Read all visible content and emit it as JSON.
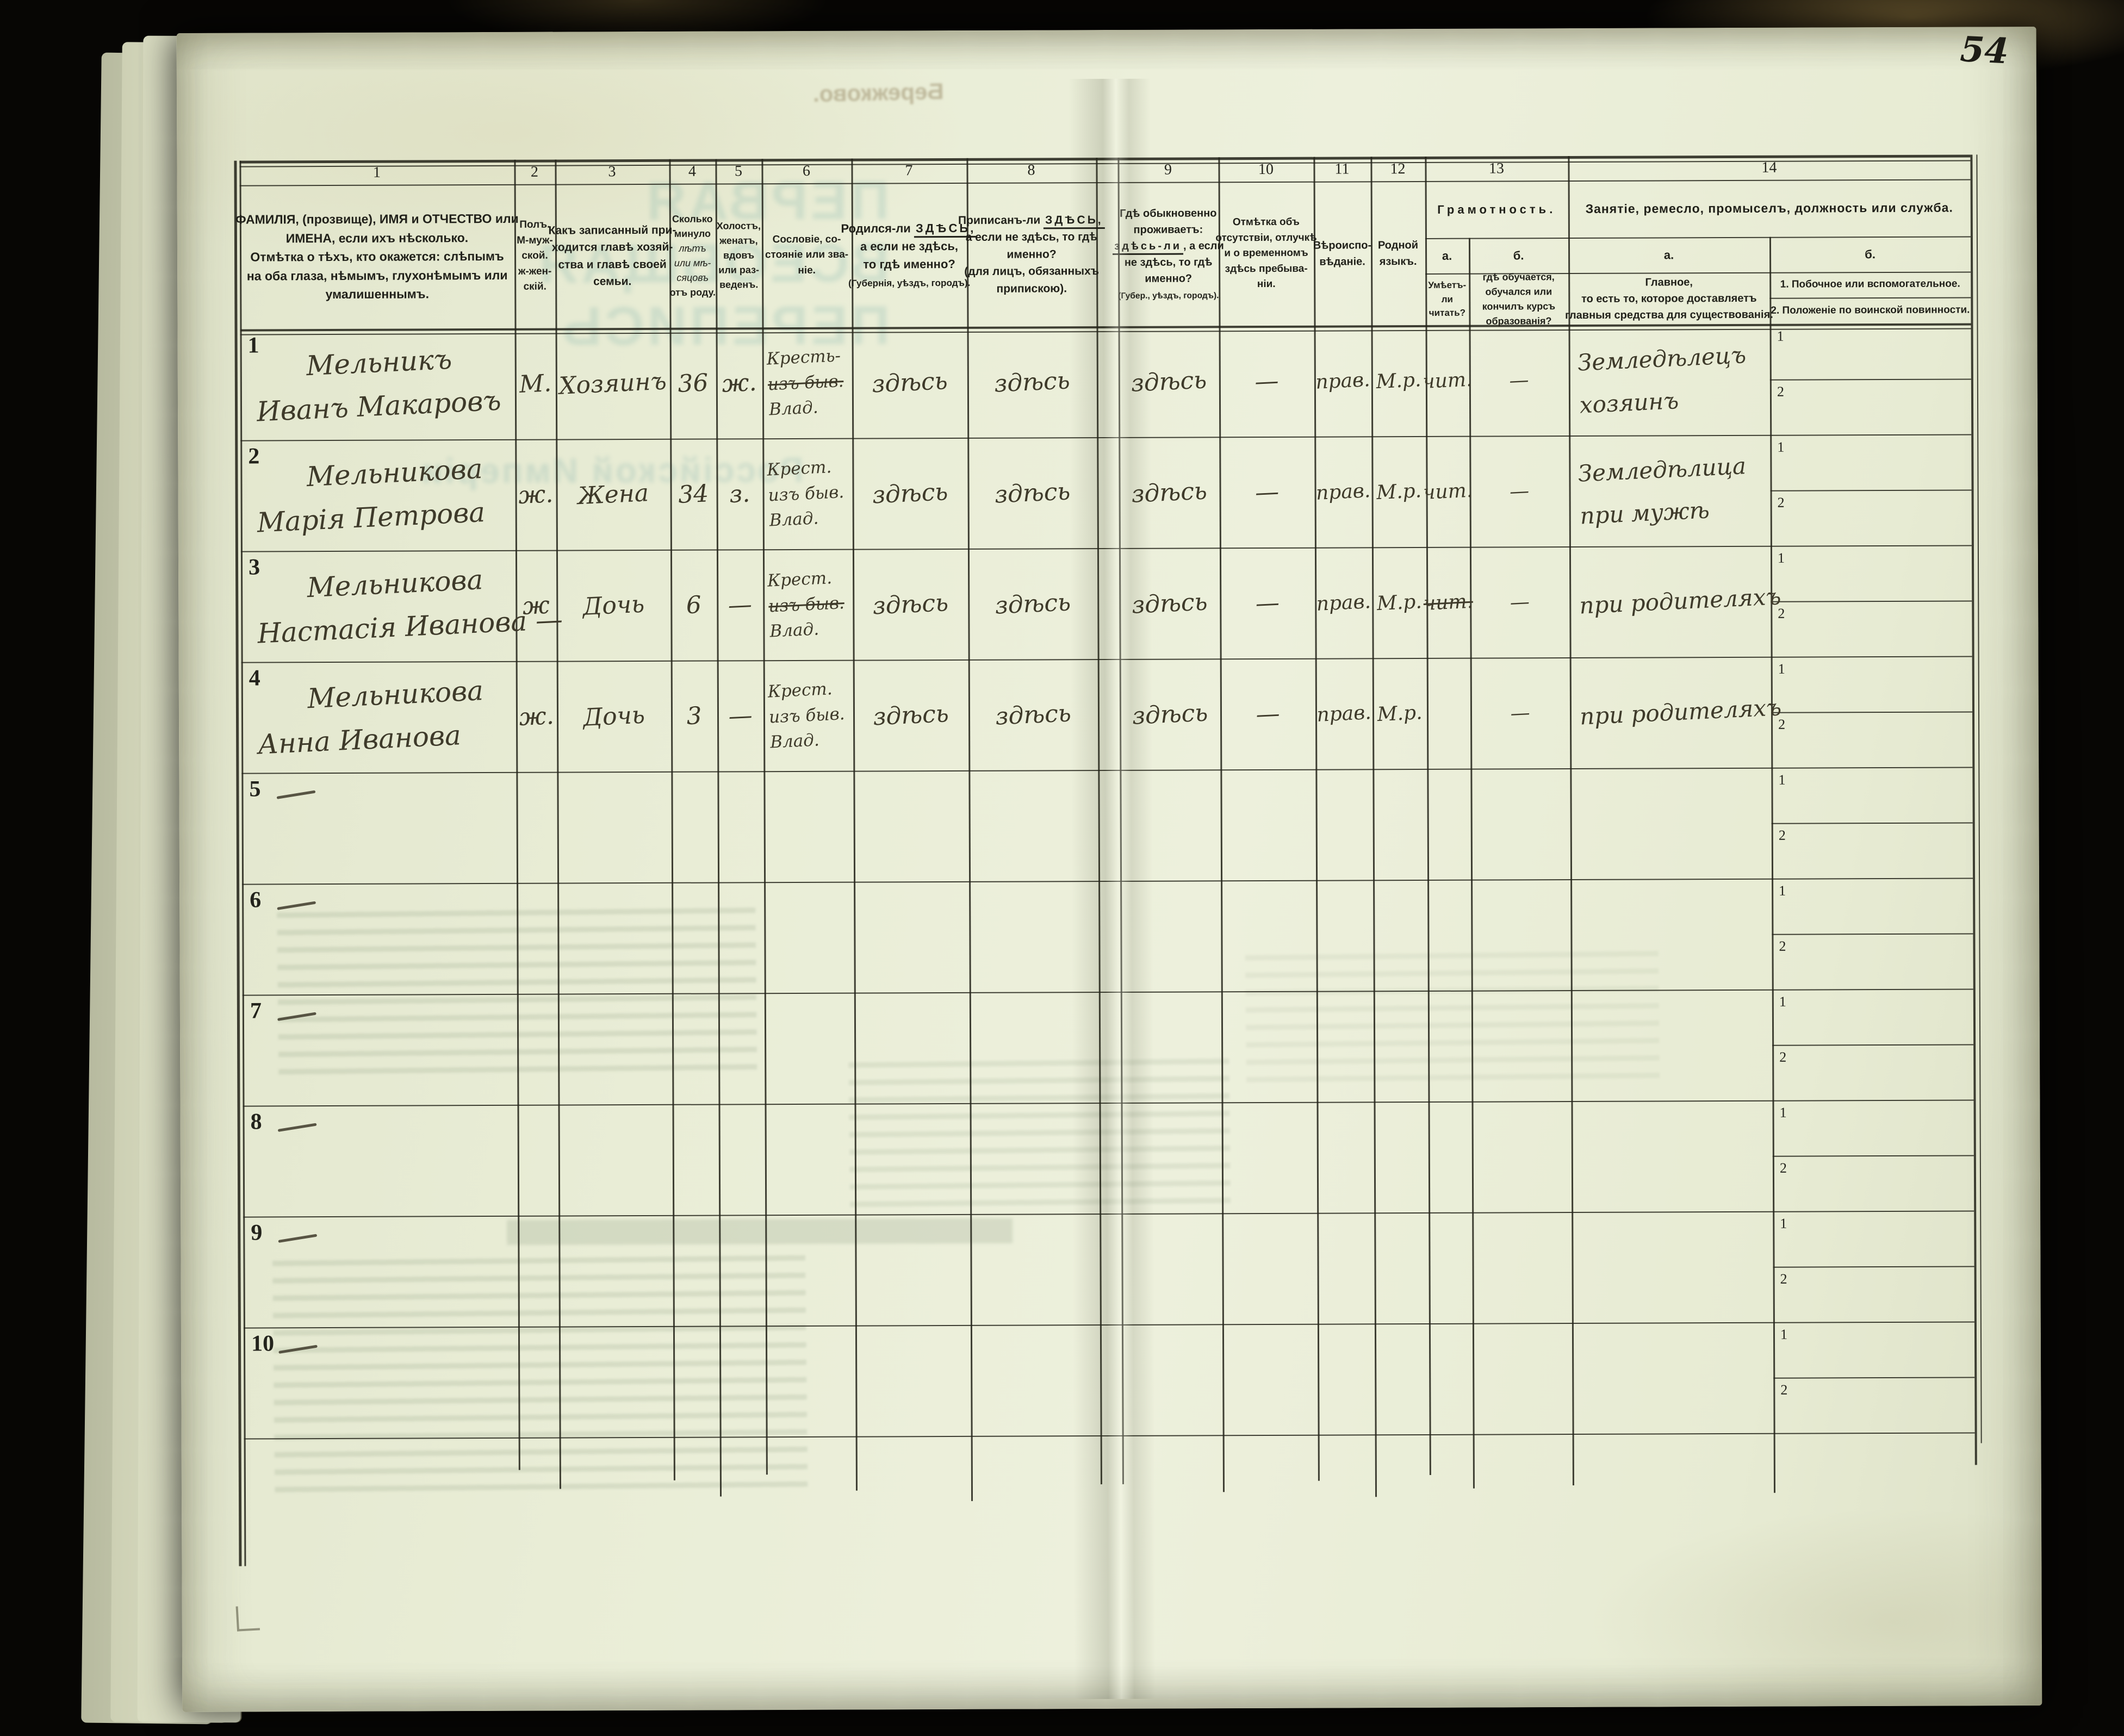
{
  "page": {
    "number": "54"
  },
  "bleedthrough": {
    "top_note": "Бережково.",
    "big_title_line1": "ПЕРВАЯ ВСЕОБЩАЯ ПЕРЕПИСЬ",
    "big_title_line2": "Россійской Имперіи"
  },
  "table": {
    "column_numbers": [
      "1",
      "2",
      "3",
      "4",
      "5",
      "6",
      "7",
      "8",
      "9",
      "10",
      "11",
      "12",
      "13",
      "14"
    ],
    "columns": {
      "c1": {
        "lines": [
          "ФАМИЛІЯ, (прозвище), ИМЯ и ОТЧЕСТВО или",
          "ИМЕНА, если ихъ нѣсколько.",
          "Отмѣтка о тѣхъ, кто окажется: слѣпымъ",
          "на оба глаза, нѣмымъ, глухонѣмымъ или",
          "умалишеннымъ."
        ]
      },
      "c2": {
        "lines": [
          "Полъ.",
          "М-муж-",
          "ской.",
          "ж-жен-",
          "скій."
        ]
      },
      "c3": {
        "lines": [
          "Какъ записанный при-",
          "ходится главѣ хозяй-",
          "ства и главѣ своей",
          "семьи."
        ]
      },
      "c4": {
        "lines": [
          "Сколько",
          "минуло",
          {
            "t": "лѣтъ",
            "i": true
          },
          {
            "t": "или мѣ-",
            "i": true
          },
          {
            "t": "сяцовъ",
            "i": true
          },
          "отъ роду."
        ]
      },
      "c5": {
        "lines": [
          "Холостъ,",
          "женатъ,",
          "вдовъ",
          "или раз-",
          "веденъ."
        ]
      },
      "c6": {
        "lines": [
          "Сословіе, со-",
          "стояніе или зва-",
          "ніе."
        ]
      },
      "c7": {
        "lines": [
          [
            "Родился-ли ",
            {
              "t": "ЗДѢСЬ,",
              "u": true
            }
          ],
          "а если не здѣсь,",
          "то гдѣ именно?",
          {
            "t": "(Губернія, уѣздъ, городъ).",
            "small": true
          }
        ]
      },
      "c8": {
        "lines": [
          [
            "Приписанъ-ли ",
            {
              "t": "ЗДѢСЬ,",
              "u": true
            }
          ],
          "а если не здѣсь, то гдѣ",
          "именно?",
          "(для лицъ, обязанныхъ",
          "припискою)."
        ]
      },
      "c9": {
        "lines": [
          "Гдѣ обыкновенно",
          "проживаетъ:",
          [
            {
              "t": "здѣсь-ли",
              "u": true
            },
            ", а если"
          ],
          "не здѣсь, то гдѣ",
          "именно?",
          {
            "t": "(Губер., уѣздъ, городъ).",
            "small": true
          }
        ]
      },
      "c10": {
        "lines": [
          "Отмѣтка объ",
          "отсутствіи, отлучкѣ",
          "и о временномъ",
          "здѣсь пребыва-",
          "ніи."
        ]
      },
      "c11": {
        "lines": [
          "Вѣроиспо-",
          "вѣданіе."
        ]
      },
      "c12": {
        "lines": [
          "Родной",
          "языкъ."
        ]
      },
      "c13": {
        "title": "Грамотность.",
        "a_letter": "а.",
        "b_letter": "б.",
        "a_lines": [
          "Умѣетъ-",
          "ли",
          "читать?"
        ],
        "b_lines": [
          "гдѣ обучается,",
          "обучался или",
          "кончилъ курсъ",
          "образованія?"
        ]
      },
      "c14": {
        "title": "Занятіе, ремесло, промыселъ, должность или служба.",
        "a_letter": "а.",
        "b_letter": "б.",
        "a_lines": [
          "Главное,",
          "то есть то, которое доставляетъ",
          "главныя средства для существованія."
        ],
        "b_line1": "1. Побочное или вспомогательное.",
        "b_line2": "2. Положеніе по воинской повинности."
      },
      "occupation_sub_numbers": [
        "1",
        "2"
      ]
    },
    "rows": [
      {
        "num": "1",
        "name": [
          "Мельникъ",
          "Иванъ Макаровъ"
        ],
        "sex": "М.",
        "relation": "Хозяинъ",
        "age": "36",
        "marital": "ж.",
        "estate": [
          {
            "t": "Кресть-"
          },
          {
            "t": "изъ быв.",
            "s": true
          },
          {
            "t": "Влад."
          }
        ],
        "born": "здѣсь",
        "registered": "здѣсь",
        "resides": "здѣсь",
        "absence": "—",
        "religion": "прав.",
        "language": "М.р.",
        "lit_read": {
          "t": "чит."
        },
        "lit_school": "—",
        "occupation": [
          "Земледѣлецъ",
          "хозяинъ"
        ]
      },
      {
        "num": "2",
        "name": [
          "Мельникова",
          "Марія Петрова"
        ],
        "sex": "ж.",
        "relation": "Жена",
        "age": "34",
        "marital": "з.",
        "estate": [
          {
            "t": "Крест."
          },
          {
            "t": "изъ быв."
          },
          {
            "t": "Влад."
          }
        ],
        "born": "здѣсь",
        "registered": "здѣсь",
        "resides": "здѣсь",
        "absence": "—",
        "religion": "прав.",
        "language": "М.р.",
        "lit_read": {
          "t": "чит."
        },
        "lit_school": "—",
        "occupation": [
          "Земледѣлица",
          "при мужѣ"
        ]
      },
      {
        "num": "3",
        "name": [
          "Мельникова",
          "Настасія Иванова —"
        ],
        "sex": "ж",
        "relation": "Дочь",
        "age": "6",
        "marital": "—",
        "estate": [
          {
            "t": "Крест."
          },
          {
            "t": "изъ быв.",
            "s": true
          },
          {
            "t": "Влад."
          }
        ],
        "born": "здѣсь",
        "registered": "здѣсь",
        "resides": "здѣсь",
        "absence": "—",
        "religion": "прав.",
        "language": "М.р.",
        "lit_read": {
          "t": "чит.",
          "s": true
        },
        "lit_school": "—",
        "occupation": [
          "при родителяхъ"
        ]
      },
      {
        "num": "4",
        "name": [
          "Мельникова",
          "Анна Иванова"
        ],
        "sex": "ж.",
        "relation": "Дочь",
        "age": "3",
        "marital": "—",
        "estate": [
          {
            "t": "Крест."
          },
          {
            "t": "изъ быв."
          },
          {
            "t": "Влад."
          }
        ],
        "born": "здѣсь",
        "registered": "здѣсь",
        "resides": "здѣсь",
        "absence": "—",
        "religion": "прав.",
        "language": "М.р.",
        "lit_read": null,
        "lit_school": "—",
        "occupation": [
          "при родителяхъ"
        ]
      },
      {
        "num": "5",
        "dash": true
      },
      {
        "num": "6",
        "dash": true
      },
      {
        "num": "7",
        "dash": true
      },
      {
        "num": "8",
        "dash": true
      },
      {
        "num": "9",
        "dash": true
      },
      {
        "num": "10",
        "dash": true
      }
    ]
  }
}
